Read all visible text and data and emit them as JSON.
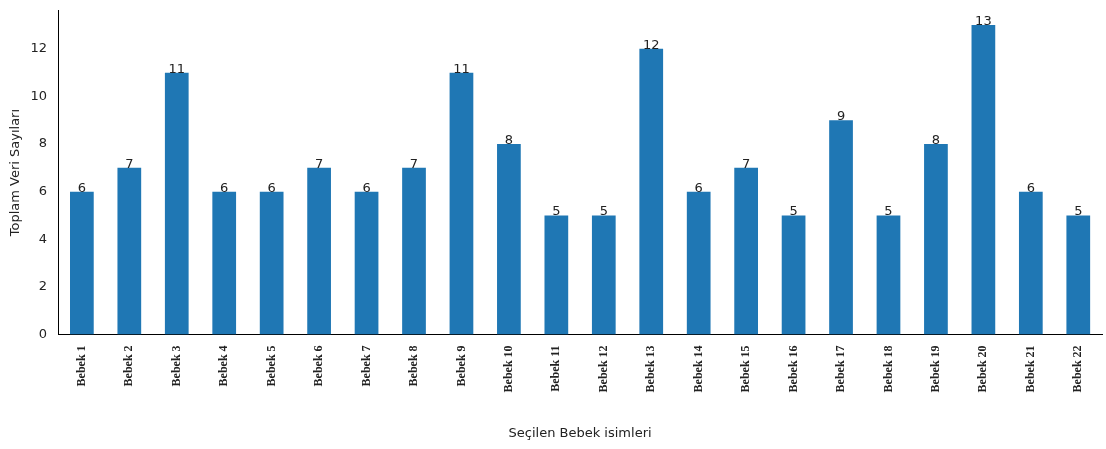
{
  "chart_data": {
    "type": "bar",
    "xlabel": "Seçilen Bebek isimleri",
    "ylabel": "Toplam Veri Sayıları",
    "categories": [
      "Bebek 1",
      "Bebek 2",
      "Bebek 3",
      "Bebek 4",
      "Bebek 5",
      "Bebek 6",
      "Bebek 7",
      "Bebek 8",
      "Bebek 9",
      "Bebek 10",
      "Bebek 11",
      "Bebek 12",
      "Bebek 13",
      "Bebek 14",
      "Bebek 15",
      "Bebek 16",
      "Bebek 17",
      "Bebek 18",
      "Bebek 19",
      "Bebek 20",
      "Bebek 21",
      "Bebek 22"
    ],
    "values": [
      6,
      7,
      11,
      6,
      6,
      7,
      6,
      7,
      11,
      8,
      5,
      5,
      12,
      6,
      7,
      5,
      9,
      5,
      8,
      13,
      6,
      5
    ],
    "color": "#1f77b4",
    "ylim": [
      0,
      13.6
    ],
    "yticks": [
      0,
      2,
      4,
      6,
      8,
      10,
      12
    ],
    "data_labels": true,
    "grid": false,
    "legend": false
  }
}
